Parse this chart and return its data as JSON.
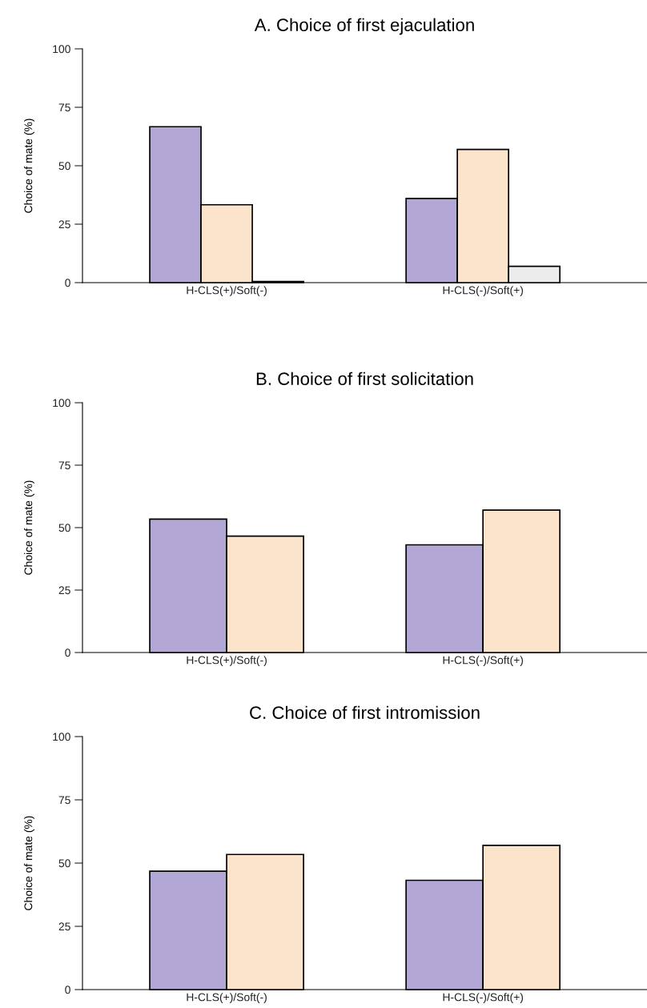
{
  "chart_data": [
    {
      "type": "bar",
      "title": "A. Choice of first ejaculation",
      "ylabel": "Choice of mate (%)",
      "categories": [
        "H-CLS(+)/Soft(-)",
        "H-CLS(-)/Soft(+)"
      ],
      "series": [
        {
          "color": "#b3a7d5",
          "values": [
            66.7,
            36
          ]
        },
        {
          "color": "#fbe4cb",
          "values": [
            33.3,
            57
          ]
        },
        {
          "color": "#ececec",
          "values": [
            0.5,
            7
          ]
        }
      ],
      "ylim": [
        0,
        100
      ],
      "yticks": [
        0,
        25,
        50,
        75,
        100
      ],
      "grid": false,
      "legend": false
    },
    {
      "type": "bar",
      "title": "B. Choice of first solicitation",
      "ylabel": "Choice of mate (%)",
      "categories": [
        "H-CLS(+)/Soft(-)",
        "H-CLS(-)/Soft(+)"
      ],
      "series": [
        {
          "color": "#b3a7d5",
          "values": [
            53.4,
            43.1
          ]
        },
        {
          "color": "#fbe4cb",
          "values": [
            46.6,
            57
          ]
        }
      ],
      "ylim": [
        0,
        100
      ],
      "yticks": [
        0,
        25,
        50,
        75,
        100
      ],
      "grid": false,
      "legend": false
    },
    {
      "type": "bar",
      "title": "C. Choice of first intromission",
      "ylabel": "Choice of mate (%)",
      "categories": [
        "H-CLS(+)/Soft(-)",
        "H-CLS(-)/Soft(+)"
      ],
      "series": [
        {
          "color": "#b3a7d5",
          "values": [
            46.8,
            43.2
          ]
        },
        {
          "color": "#fbe4cb",
          "values": [
            53.4,
            57
          ]
        }
      ],
      "ylim": [
        0,
        100
      ],
      "yticks": [
        0,
        25,
        50,
        75,
        100
      ],
      "grid": false,
      "legend": false
    }
  ]
}
